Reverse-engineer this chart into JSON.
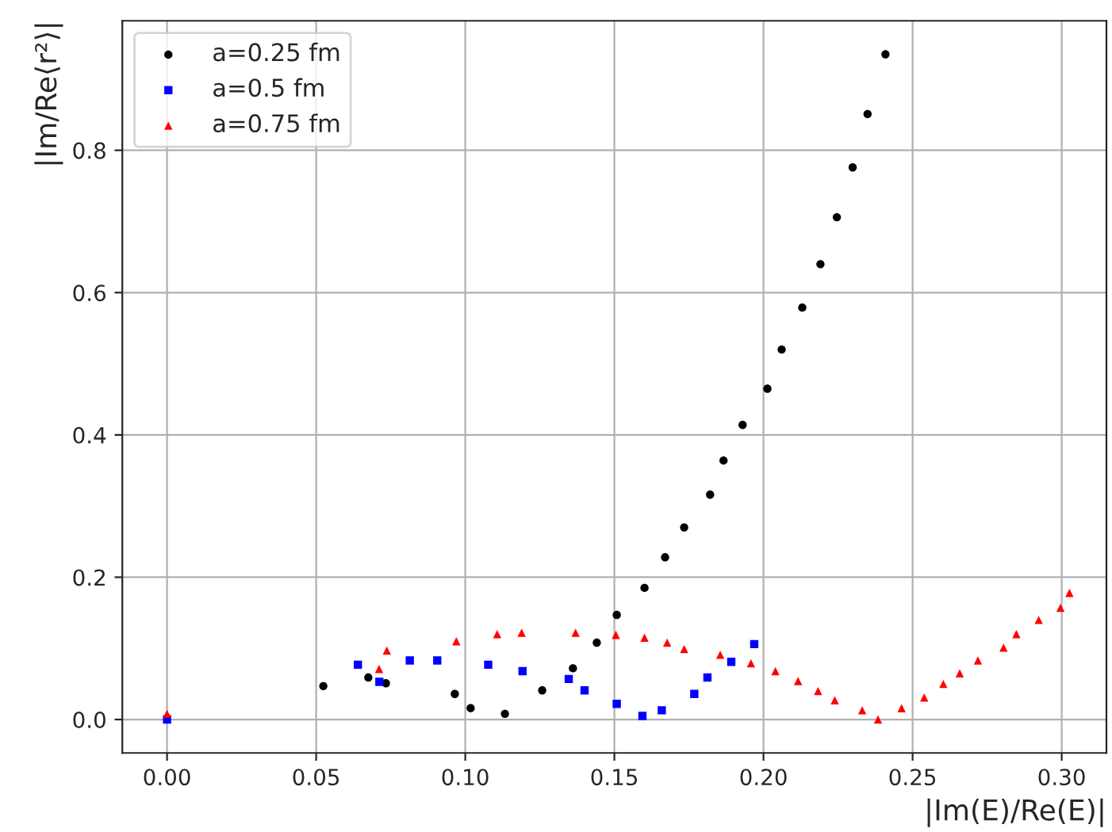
{
  "chart_data": {
    "type": "scatter",
    "xlabel": "|Im(E)/Re(E)|",
    "ylabel": "|Im/Re⟨r²⟩|",
    "xlim": [
      -0.015,
      0.315
    ],
    "ylim": [
      -0.047,
      0.982
    ],
    "xticks": [
      {
        "value": 0,
        "label": "0.00"
      },
      {
        "value": 0.05,
        "label": "0.05"
      },
      {
        "value": 0.1,
        "label": "0.10"
      },
      {
        "value": 0.15,
        "label": "0.15"
      },
      {
        "value": 0.2,
        "label": "0.20"
      },
      {
        "value": 0.25,
        "label": "0.25"
      },
      {
        "value": 0.3,
        "label": "0.30"
      }
    ],
    "yticks": [
      {
        "value": 0,
        "label": "0.0"
      },
      {
        "value": 0.2,
        "label": "0.2"
      },
      {
        "value": 0.4,
        "label": "0.4"
      },
      {
        "value": 0.6,
        "label": "0.6"
      },
      {
        "value": 0.8,
        "label": "0.8"
      }
    ],
    "grid": true,
    "legend": "top left",
    "series": [
      {
        "name": "a=0.25 fm",
        "color": "#000000",
        "marker": "circle",
        "x": [
          0.0524,
          0.0675,
          0.0734,
          0.0965,
          0.1018,
          0.1133,
          0.1258,
          0.1361,
          0.1441,
          0.1508,
          0.1601,
          0.167,
          0.1734,
          0.1821,
          0.1866,
          0.193,
          0.2013,
          0.2061,
          0.213,
          0.2191,
          0.2246,
          0.2299,
          0.2349,
          0.2409
        ],
        "values": [
          0.047,
          0.059,
          0.051,
          0.036,
          0.016,
          0.008,
          0.041,
          0.072,
          0.108,
          0.147,
          0.185,
          0.228,
          0.27,
          0.316,
          0.364,
          0.414,
          0.465,
          0.52,
          0.579,
          0.64,
          0.706,
          0.776,
          0.851,
          0.935
        ]
      },
      {
        "name": "a=0.5 fm",
        "color": "#0000ff",
        "marker": "square",
        "x": [
          0.0,
          0.064,
          0.0712,
          0.0814,
          0.0906,
          0.1077,
          0.1192,
          0.1347,
          0.14,
          0.1508,
          0.1594,
          0.1659,
          0.1768,
          0.1812,
          0.1892,
          0.1969
        ],
        "values": [
          0.0,
          0.077,
          0.053,
          0.083,
          0.083,
          0.077,
          0.068,
          0.057,
          0.041,
          0.022,
          0.005,
          0.013,
          0.036,
          0.059,
          0.081,
          0.106
        ]
      },
      {
        "name": "a=0.75 fm",
        "color": "#ff0000",
        "marker": "triangle",
        "x": [
          0.0,
          0.0711,
          0.0737,
          0.097,
          0.1107,
          0.1189,
          0.137,
          0.1505,
          0.1601,
          0.1677,
          0.1734,
          0.1855,
          0.1958,
          0.204,
          0.2116,
          0.2183,
          0.2239,
          0.2331,
          0.2384,
          0.2463,
          0.2539,
          0.2603,
          0.2658,
          0.2719,
          0.2805,
          0.2848,
          0.2923,
          0.2996,
          0.3026
        ],
        "values": [
          0.008,
          0.071,
          0.097,
          0.11,
          0.12,
          0.122,
          0.122,
          0.119,
          0.115,
          0.108,
          0.099,
          0.091,
          0.079,
          0.068,
          0.054,
          0.04,
          0.027,
          0.013,
          0.0,
          0.016,
          0.031,
          0.05,
          0.065,
          0.083,
          0.101,
          0.12,
          0.14,
          0.157,
          0.178
        ]
      }
    ]
  }
}
